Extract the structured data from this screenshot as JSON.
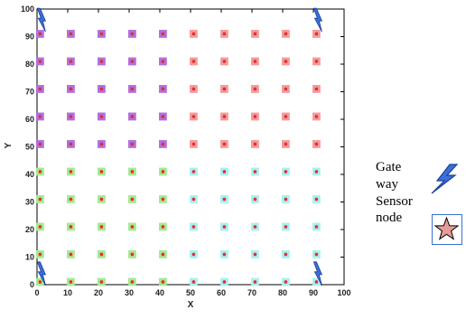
{
  "chart_data": {
    "type": "scatter",
    "title": "",
    "xlabel": "X",
    "ylabel": "Y",
    "xlim": [
      0,
      100
    ],
    "ylim": [
      0,
      100
    ],
    "x_ticks": [
      0,
      10,
      20,
      30,
      40,
      50,
      60,
      70,
      80,
      90,
      100
    ],
    "y_ticks": [
      0,
      10,
      20,
      30,
      40,
      50,
      60,
      70,
      80,
      90,
      100
    ],
    "grid": false,
    "marker_center_color": "#e03030",
    "series": [
      {
        "color": "#b070e0",
        "points": [
          [
            1,
            91
          ],
          [
            11,
            91
          ],
          [
            21,
            91
          ],
          [
            31,
            91
          ],
          [
            41,
            91
          ],
          [
            1,
            81
          ],
          [
            11,
            81
          ],
          [
            21,
            81
          ],
          [
            31,
            81
          ],
          [
            41,
            81
          ],
          [
            1,
            71
          ],
          [
            11,
            71
          ],
          [
            21,
            71
          ],
          [
            31,
            71
          ],
          [
            41,
            71
          ],
          [
            1,
            61
          ],
          [
            11,
            61
          ],
          [
            21,
            61
          ],
          [
            31,
            61
          ],
          [
            41,
            61
          ],
          [
            1,
            51
          ],
          [
            11,
            51
          ],
          [
            21,
            51
          ],
          [
            31,
            51
          ],
          [
            41,
            51
          ]
        ]
      },
      {
        "color": "#f59a9a",
        "points": [
          [
            51,
            91
          ],
          [
            61,
            91
          ],
          [
            71,
            91
          ],
          [
            81,
            91
          ],
          [
            91,
            91
          ],
          [
            51,
            81
          ],
          [
            61,
            81
          ],
          [
            71,
            81
          ],
          [
            81,
            81
          ],
          [
            91,
            81
          ],
          [
            51,
            71
          ],
          [
            61,
            71
          ],
          [
            71,
            71
          ],
          [
            81,
            71
          ],
          [
            91,
            71
          ],
          [
            51,
            61
          ],
          [
            61,
            61
          ],
          [
            71,
            61
          ],
          [
            81,
            61
          ],
          [
            91,
            61
          ],
          [
            51,
            51
          ],
          [
            61,
            51
          ],
          [
            71,
            51
          ],
          [
            81,
            51
          ],
          [
            91,
            51
          ]
        ]
      },
      {
        "color": "#a8e890",
        "points": [
          [
            1,
            41
          ],
          [
            11,
            41
          ],
          [
            21,
            41
          ],
          [
            31,
            41
          ],
          [
            41,
            41
          ],
          [
            1,
            31
          ],
          [
            11,
            31
          ],
          [
            21,
            31
          ],
          [
            31,
            31
          ],
          [
            41,
            31
          ],
          [
            1,
            21
          ],
          [
            11,
            21
          ],
          [
            21,
            21
          ],
          [
            31,
            21
          ],
          [
            41,
            21
          ],
          [
            1,
            11
          ],
          [
            11,
            11
          ],
          [
            21,
            11
          ],
          [
            31,
            11
          ],
          [
            41,
            11
          ],
          [
            1,
            1
          ],
          [
            11,
            1
          ],
          [
            21,
            1
          ],
          [
            31,
            1
          ],
          [
            41,
            1
          ]
        ]
      },
      {
        "color": "#a8f0f0",
        "points": [
          [
            51,
            41
          ],
          [
            61,
            41
          ],
          [
            71,
            41
          ],
          [
            81,
            41
          ],
          [
            91,
            41
          ],
          [
            51,
            31
          ],
          [
            61,
            31
          ],
          [
            71,
            31
          ],
          [
            81,
            31
          ],
          [
            91,
            31
          ],
          [
            51,
            21
          ],
          [
            61,
            21
          ],
          [
            71,
            21
          ],
          [
            81,
            21
          ],
          [
            91,
            21
          ],
          [
            51,
            11
          ],
          [
            61,
            11
          ],
          [
            71,
            11
          ],
          [
            81,
            11
          ],
          [
            91,
            11
          ],
          [
            51,
            1
          ],
          [
            61,
            1
          ],
          [
            71,
            1
          ],
          [
            81,
            1
          ],
          [
            91,
            1
          ]
        ]
      }
    ],
    "gateways": [
      [
        1,
        96
      ],
      [
        91,
        96
      ],
      [
        1,
        4
      ],
      [
        91,
        4
      ]
    ],
    "gateway_color": "#3b6fd8"
  },
  "legend": {
    "gateway_line1": "Gate",
    "gateway_line2": "way",
    "sensor_line1": "Sensor",
    "sensor_line2": "node",
    "gateway_icon": "lightning-bolt",
    "sensor_icon": "star",
    "star_fill": "#e89a9a",
    "box_border": "#3b6fd8"
  }
}
